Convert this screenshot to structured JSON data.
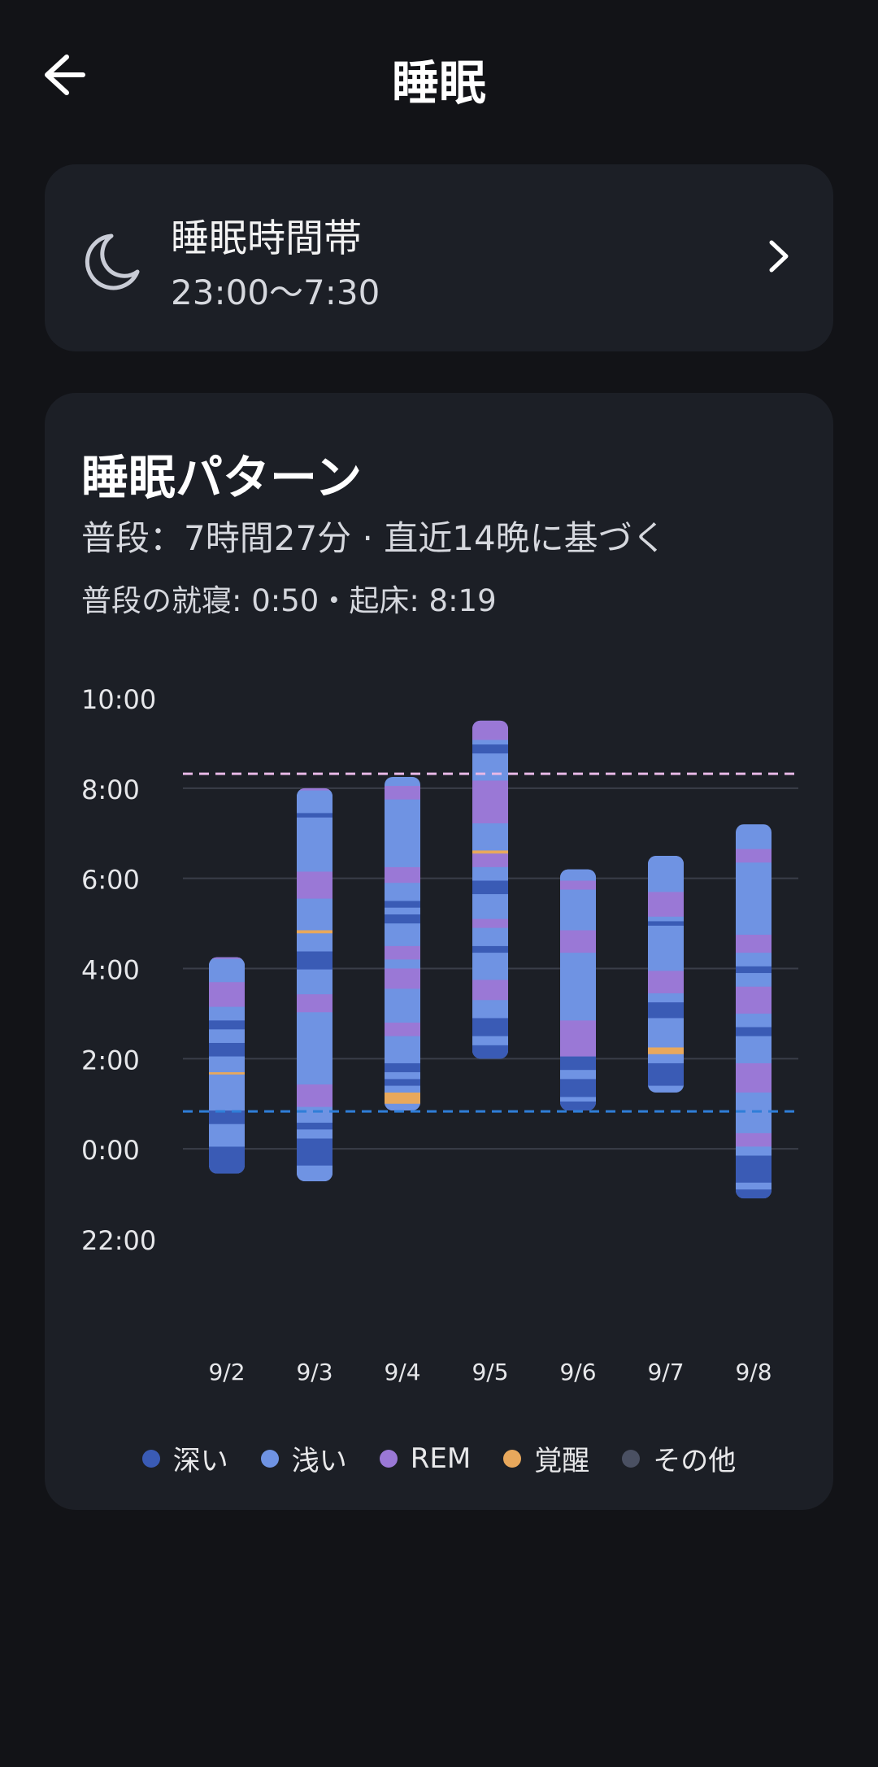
{
  "app": {
    "title": "睡眠"
  },
  "icons": {
    "back": "arrow-left-icon",
    "moon": "moon-icon",
    "chevron": "chevron-right-icon"
  },
  "schedule": {
    "title": "睡眠時間帯",
    "time": "23:00〜7:30"
  },
  "pattern": {
    "title": "睡眠パターン",
    "subtitle": "普段：7時間27分 · 直近14晩に基づく",
    "usual": "普段の就寝: 0:50・起床: 8:19"
  },
  "colors": {
    "deep": "#3a5bb5",
    "light": "#6f93e3",
    "rem": "#9a78d6",
    "awake": "#e8a85c",
    "other": "#4a5062",
    "usual_bed_line": "#2f7ed8",
    "usual_wake_line": "#e7b8e6"
  },
  "legend": [
    {
      "key": "deep",
      "label": "深い",
      "color": "#3a5bb5"
    },
    {
      "key": "light",
      "label": "浅い",
      "color": "#6f93e3"
    },
    {
      "key": "rem",
      "label": "REM",
      "color": "#9a78d6"
    },
    {
      "key": "awake",
      "label": "覚醒",
      "color": "#e8a85c"
    },
    {
      "key": "other",
      "label": "その他",
      "color": "#4a5062"
    }
  ],
  "chart_data": {
    "type": "bar",
    "y_axis_unit": "hours relative to midnight (negative = previous evening)",
    "y_tick_labels": [
      "10:00",
      "8:00",
      "6:00",
      "4:00",
      "2:00",
      "0:00",
      "22:00"
    ],
    "ylim": [
      -2,
      10
    ],
    "reference_lines": [
      {
        "name": "usual_wake",
        "value": 8.32
      },
      {
        "name": "usual_bed",
        "value": 0.83
      }
    ],
    "nights": [
      {
        "date": "9/2",
        "start": -0.55,
        "end": 4.25,
        "stages": [
          [
            "deep",
            0.6
          ],
          [
            "light",
            0.5
          ],
          [
            "deep",
            0.3
          ],
          [
            "light",
            0.8
          ],
          [
            "awake",
            0.05
          ],
          [
            "light",
            0.35
          ],
          [
            "deep",
            0.3
          ],
          [
            "light",
            0.3
          ],
          [
            "deep",
            0.2
          ],
          [
            "light",
            0.3
          ],
          [
            "rem",
            0.55
          ],
          [
            "light",
            0.9
          ],
          [
            "rem",
            0.15
          ]
        ]
      },
      {
        "date": "9/3",
        "start": -0.72,
        "end": 8.0,
        "stages": [
          [
            "light",
            0.35
          ],
          [
            "deep",
            0.6
          ],
          [
            "light",
            0.2
          ],
          [
            "deep",
            0.15
          ],
          [
            "light",
            0.35
          ],
          [
            "rem",
            0.5
          ],
          [
            "light",
            1.6
          ],
          [
            "rem",
            0.4
          ],
          [
            "light",
            0.55
          ],
          [
            "deep",
            0.4
          ],
          [
            "light",
            0.4
          ],
          [
            "awake",
            0.07
          ],
          [
            "light",
            0.7
          ],
          [
            "rem",
            0.6
          ],
          [
            "light",
            1.2
          ],
          [
            "deep",
            0.1
          ],
          [
            "light",
            0.5
          ],
          [
            "rem",
            0.35
          ]
        ]
      },
      {
        "date": "9/4",
        "start": 0.85,
        "end": 8.25,
        "stages": [
          [
            "light",
            0.15
          ],
          [
            "awake",
            0.25
          ],
          [
            "light",
            0.15
          ],
          [
            "deep",
            0.15
          ],
          [
            "light",
            0.15
          ],
          [
            "deep",
            0.2
          ],
          [
            "light",
            0.6
          ],
          [
            "rem",
            0.3
          ],
          [
            "light",
            0.75
          ],
          [
            "rem",
            0.45
          ],
          [
            "light",
            0.2
          ],
          [
            "rem",
            0.3
          ],
          [
            "light",
            0.5
          ],
          [
            "deep",
            0.2
          ],
          [
            "light",
            0.15
          ],
          [
            "deep",
            0.15
          ],
          [
            "light",
            0.4
          ],
          [
            "rem",
            0.35
          ],
          [
            "light",
            1.5
          ],
          [
            "rem",
            0.3
          ]
        ]
      },
      {
        "date": "9/5",
        "start": 2.0,
        "end": 9.5,
        "stages": [
          [
            "deep",
            0.3
          ],
          [
            "light",
            0.2
          ],
          [
            "deep",
            0.4
          ],
          [
            "light",
            0.4
          ],
          [
            "rem",
            0.45
          ],
          [
            "light",
            0.6
          ],
          [
            "deep",
            0.15
          ],
          [
            "light",
            0.4
          ],
          [
            "rem",
            0.2
          ],
          [
            "light",
            0.55
          ],
          [
            "deep",
            0.3
          ],
          [
            "light",
            0.3
          ],
          [
            "rem",
            0.3
          ],
          [
            "awake",
            0.07
          ],
          [
            "light",
            0.6
          ],
          [
            "rem",
            0.95
          ],
          [
            "light",
            0.6
          ],
          [
            "deep",
            0.2
          ],
          [
            "light",
            0.1
          ],
          [
            "rem",
            0.45
          ]
        ]
      },
      {
        "date": "9/6",
        "start": 0.85,
        "end": 6.2,
        "stages": [
          [
            "deep",
            0.2
          ],
          [
            "light",
            0.1
          ],
          [
            "deep",
            0.4
          ],
          [
            "light",
            0.2
          ],
          [
            "deep",
            0.3
          ],
          [
            "rem",
            0.8
          ],
          [
            "light",
            1.5
          ],
          [
            "rem",
            0.5
          ],
          [
            "light",
            0.9
          ],
          [
            "rem",
            0.2
          ],
          [
            "light",
            0.35
          ]
        ]
      },
      {
        "date": "9/7",
        "start": 1.25,
        "end": 6.5,
        "stages": [
          [
            "light",
            0.15
          ],
          [
            "deep",
            0.5
          ],
          [
            "light",
            0.2
          ],
          [
            "awake",
            0.15
          ],
          [
            "light",
            0.65
          ],
          [
            "deep",
            0.35
          ],
          [
            "light",
            0.2
          ],
          [
            "rem",
            0.5
          ],
          [
            "light",
            1.0
          ],
          [
            "deep",
            0.1
          ],
          [
            "light",
            0.1
          ],
          [
            "rem",
            0.55
          ],
          [
            "light",
            0.8
          ]
        ]
      },
      {
        "date": "9/8",
        "start": -1.1,
        "end": 7.2,
        "stages": [
          [
            "deep",
            0.2
          ],
          [
            "light",
            0.15
          ],
          [
            "deep",
            0.6
          ],
          [
            "light",
            0.2
          ],
          [
            "rem",
            0.3
          ],
          [
            "light",
            0.9
          ],
          [
            "rem",
            0.65
          ],
          [
            "light",
            0.6
          ],
          [
            "deep",
            0.2
          ],
          [
            "light",
            0.3
          ],
          [
            "rem",
            0.6
          ],
          [
            "light",
            0.3
          ],
          [
            "deep",
            0.15
          ],
          [
            "light",
            0.3
          ],
          [
            "rem",
            0.4
          ],
          [
            "light",
            1.6
          ],
          [
            "rem",
            0.3
          ]
        ]
      }
    ]
  }
}
